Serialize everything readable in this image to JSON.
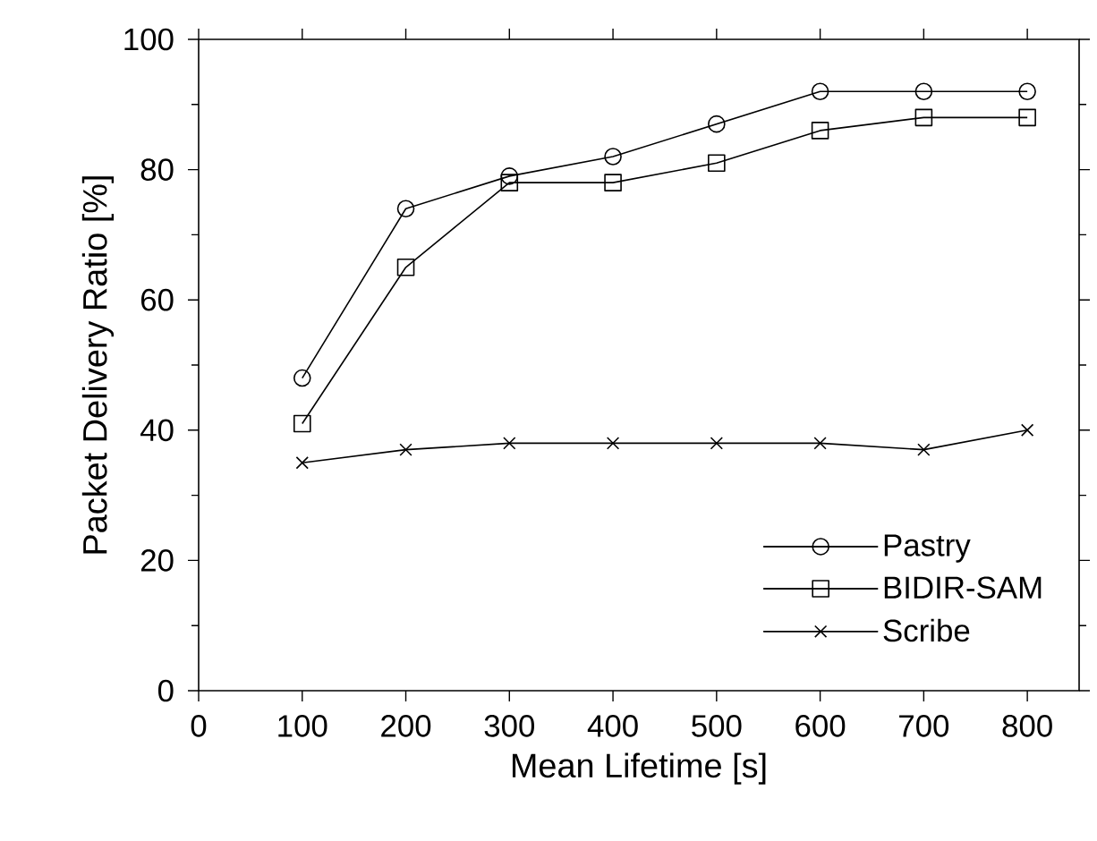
{
  "chart_data": {
    "type": "line",
    "xlabel": "Mean Lifetime [s]",
    "ylabel": "Packet Delivery Ratio [%]",
    "x": [
      100,
      200,
      300,
      400,
      500,
      600,
      700,
      800
    ],
    "series": [
      {
        "name": "Pastry",
        "color": "#000000",
        "marker": "circle",
        "values": [
          48,
          74,
          79,
          82,
          87,
          92,
          92,
          92
        ]
      },
      {
        "name": "BIDIR-SAM",
        "color": "#000000",
        "marker": "square",
        "values": [
          41,
          65,
          78,
          78,
          81,
          86,
          88,
          88
        ]
      },
      {
        "name": "Scribe",
        "color": "#000000",
        "marker": "cross",
        "values": [
          35,
          37,
          38,
          38,
          38,
          38,
          37,
          40
        ]
      }
    ],
    "xlim": [
      0,
      850
    ],
    "ylim": [
      0,
      100
    ],
    "xticks": [
      0,
      100,
      200,
      300,
      400,
      500,
      600,
      700,
      800
    ],
    "yticks": [
      0,
      20,
      40,
      60,
      80,
      100
    ],
    "grid": false,
    "legend": "bottom right",
    "line_style": "solid"
  }
}
